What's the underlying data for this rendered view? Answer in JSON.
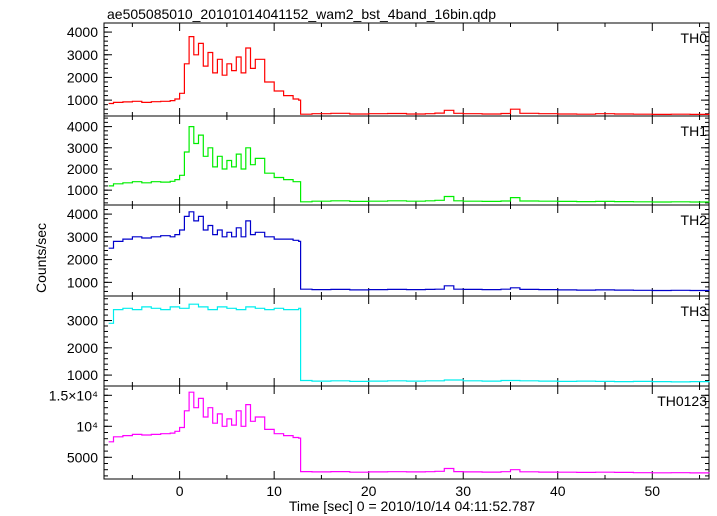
{
  "chart_data": {
    "type": "line",
    "title": "ae505085010_20101014041152_wam2_bst_4band_16bin.qdp",
    "xlabel": "Time [sec] 0 = 2010/10/14 04:11:52.787",
    "ylabel": "Counts/sec",
    "xlim": [
      -8,
      56
    ],
    "x_ticks": [
      0,
      10,
      20,
      30,
      40,
      50
    ],
    "panels": [
      {
        "name": "TH0",
        "color": "#ff0000",
        "ylim": [
          300,
          4400
        ],
        "y_ticks": [
          1000,
          2000,
          3000,
          4000
        ],
        "y_tick_labels": [
          "1000",
          "2000",
          "3000",
          "4000"
        ],
        "x": [
          -7.5,
          -7,
          -6,
          -5,
          -4,
          -3,
          -2,
          -1,
          -0.5,
          0,
          0.5,
          1,
          1.5,
          2,
          2.5,
          3,
          3.5,
          4,
          4.5,
          5,
          5.5,
          6,
          6.5,
          7,
          7.5,
          8,
          9,
          10,
          11,
          12,
          12.6,
          12.8,
          14,
          16,
          18,
          20,
          22,
          24,
          26,
          27,
          28,
          29,
          30,
          32,
          34,
          35,
          36,
          38,
          40,
          42,
          44,
          46,
          48,
          50,
          52,
          54,
          56
        ],
        "values": [
          850,
          900,
          920,
          950,
          900,
          930,
          950,
          980,
          1050,
          1300,
          2600,
          3800,
          3000,
          3500,
          2500,
          3100,
          2200,
          2800,
          2100,
          2600,
          2300,
          2900,
          2200,
          3300,
          2400,
          2800,
          1800,
          1400,
          1200,
          1050,
          1000,
          380,
          400,
          420,
          390,
          400,
          410,
          390,
          400,
          430,
          550,
          420,
          400,
          390,
          410,
          600,
          420,
          400,
          390,
          380,
          400,
          390,
          380,
          370,
          380,
          370,
          350
        ]
      },
      {
        "name": "TH1",
        "color": "#00ee00",
        "ylim": [
          300,
          4500
        ],
        "y_ticks": [
          1000,
          2000,
          3000,
          4000
        ],
        "y_tick_labels": [
          "1000",
          "2000",
          "3000",
          "4000"
        ],
        "x": [
          -7.5,
          -7,
          -6,
          -5,
          -4,
          -3,
          -2,
          -1,
          -0.5,
          0,
          0.5,
          1,
          1.5,
          2,
          2.5,
          3,
          3.5,
          4,
          4.5,
          5,
          5.5,
          6,
          6.5,
          7,
          7.5,
          8,
          9,
          10,
          11,
          12,
          12.6,
          12.8,
          14,
          16,
          18,
          20,
          22,
          24,
          26,
          27,
          28,
          29,
          30,
          32,
          34,
          35,
          36,
          38,
          40,
          42,
          44,
          46,
          48,
          50,
          52,
          54,
          56
        ],
        "values": [
          1200,
          1300,
          1350,
          1400,
          1350,
          1400,
          1380,
          1420,
          1500,
          1700,
          2800,
          4000,
          3200,
          3600,
          2600,
          3000,
          2100,
          2600,
          2000,
          2400,
          2100,
          2700,
          2000,
          3000,
          2200,
          2500,
          1800,
          1600,
          1500,
          1400,
          1400,
          450,
          480,
          500,
          470,
          480,
          500,
          480,
          500,
          520,
          700,
          500,
          480,
          470,
          490,
          650,
          490,
          480,
          470,
          460,
          470,
          460,
          450,
          440,
          450,
          440,
          420
        ]
      },
      {
        "name": "TH2",
        "color": "#0000cc",
        "ylim": [
          400,
          4400
        ],
        "y_ticks": [
          1000,
          2000,
          3000,
          4000
        ],
        "y_tick_labels": [
          "1000",
          "2000",
          "3000",
          "4000"
        ],
        "x": [
          -7.5,
          -7,
          -6,
          -5,
          -4,
          -3,
          -2,
          -1,
          -0.5,
          0,
          0.5,
          1,
          1.5,
          2,
          2.5,
          3,
          3.5,
          4,
          4.5,
          5,
          5.5,
          6,
          6.5,
          7,
          7.5,
          8,
          9,
          10,
          11,
          12,
          12.6,
          12.8,
          14,
          16,
          18,
          20,
          22,
          24,
          26,
          27,
          28,
          29,
          30,
          32,
          34,
          35,
          36,
          38,
          40,
          42,
          44,
          46,
          48,
          50,
          52,
          54,
          56
        ],
        "values": [
          2500,
          2800,
          2900,
          3000,
          2950,
          3000,
          3050,
          3000,
          3100,
          3300,
          3900,
          4100,
          3700,
          3900,
          3300,
          3500,
          3100,
          3300,
          3000,
          3200,
          3000,
          3400,
          3000,
          3700,
          3100,
          3200,
          3000,
          2900,
          2900,
          2850,
          2800,
          700,
          680,
          690,
          670,
          680,
          690,
          680,
          690,
          700,
          850,
          700,
          690,
          680,
          700,
          760,
          690,
          680,
          670,
          660,
          670,
          660,
          650,
          640,
          650,
          640,
          620
        ]
      },
      {
        "name": "TH3",
        "color": "#00eeee",
        "ylim": [
          600,
          3900
        ],
        "y_ticks": [
          1000,
          2000,
          3000
        ],
        "y_tick_labels": [
          "1000",
          "2000",
          "3000"
        ],
        "x": [
          -7.5,
          -7,
          -6,
          -5,
          -4,
          -3,
          -2,
          -1,
          0,
          1,
          2,
          3,
          4,
          5,
          6,
          7,
          8,
          9,
          10,
          11,
          12,
          12.6,
          12.8,
          14,
          16,
          18,
          20,
          22,
          24,
          26,
          28,
          30,
          32,
          34,
          36,
          38,
          40,
          42,
          44,
          46,
          48,
          50,
          52,
          54,
          56
        ],
        "values": [
          2900,
          3400,
          3450,
          3400,
          3500,
          3450,
          3400,
          3500,
          3450,
          3600,
          3500,
          3400,
          3500,
          3450,
          3400,
          3500,
          3450,
          3400,
          3450,
          3400,
          3400,
          3450,
          800,
          780,
          790,
          770,
          780,
          790,
          780,
          790,
          820,
          790,
          780,
          800,
          790,
          780,
          770,
          780,
          770,
          760,
          770,
          760,
          750,
          760,
          740
        ]
      },
      {
        "name": "TH0123",
        "color": "#ff00ff",
        "ylim": [
          1500,
          16500
        ],
        "y_ticks": [
          5000,
          10000,
          15000
        ],
        "y_tick_labels": [
          "5000",
          "10⁴",
          "1.5×10⁴"
        ],
        "x": [
          -7.5,
          -7,
          -6,
          -5,
          -4,
          -3,
          -2,
          -1,
          -0.5,
          0,
          0.5,
          1,
          1.5,
          2,
          2.5,
          3,
          3.5,
          4,
          4.5,
          5,
          5.5,
          6,
          6.5,
          7,
          7.5,
          8,
          9,
          10,
          11,
          12,
          12.6,
          12.8,
          14,
          16,
          18,
          20,
          22,
          24,
          26,
          27,
          28,
          29,
          30,
          32,
          34,
          35,
          36,
          38,
          40,
          42,
          44,
          46,
          48,
          50,
          52,
          54,
          56
        ],
        "values": [
          7500,
          8300,
          8500,
          8700,
          8600,
          8700,
          8800,
          8900,
          9200,
          9800,
          12500,
          15500,
          13000,
          14500,
          11500,
          13000,
          10500,
          12000,
          10000,
          11200,
          10200,
          12500,
          10000,
          13500,
          10800,
          11500,
          9500,
          8800,
          8500,
          8200,
          8100,
          2700,
          2650,
          2700,
          2600,
          2650,
          2680,
          2640,
          2680,
          2750,
          3200,
          2700,
          2650,
          2620,
          2680,
          3000,
          2660,
          2620,
          2600,
          2560,
          2600,
          2560,
          2520,
          2500,
          2520,
          2480,
          2400
        ]
      }
    ]
  }
}
